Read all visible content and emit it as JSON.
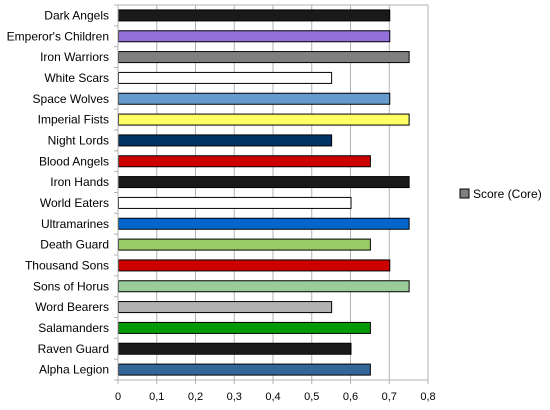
{
  "chart_data": {
    "type": "bar",
    "orientation": "horizontal",
    "categories": [
      "Dark Angels",
      "Emperor's Children",
      "Iron Warriors",
      "White Scars",
      "Space Wolves",
      "Imperial Fists",
      "Night Lords",
      "Blood Angels",
      "Iron Hands",
      "World Eaters",
      "Ultramarines",
      "Death Guard",
      "Thousand Sons",
      "Sons of Horus",
      "Word Bearers",
      "Salamanders",
      "Raven Guard",
      "Alpha Legion"
    ],
    "series": [
      {
        "name": "Score (Core)",
        "values": [
          0.7,
          0.7,
          0.75,
          0.55,
          0.7,
          0.75,
          0.55,
          0.65,
          0.75,
          0.6,
          0.75,
          0.65,
          0.7,
          0.75,
          0.55,
          0.65,
          0.6,
          0.65
        ],
        "colors": [
          "#1a1a1a",
          "#9370db",
          "#808080",
          "#ffffff",
          "#6699cc",
          "#ffff66",
          "#003366",
          "#cc0000",
          "#1a1a1a",
          "#ffffff",
          "#0066cc",
          "#99cc66",
          "#cc0000",
          "#99cc99",
          "#b3b3b3",
          "#009900",
          "#1a1a1a",
          "#336699"
        ]
      }
    ],
    "xlim": [
      0,
      0.8
    ],
    "x_ticks": [
      "0",
      "0,1",
      "0,2",
      "0,3",
      "0,4",
      "0,5",
      "0,6",
      "0,7",
      "0,8"
    ],
    "x_tick_values": [
      0,
      0.1,
      0.2,
      0.3,
      0.4,
      0.5,
      0.6,
      0.7,
      0.8
    ],
    "grid": true,
    "legend": {
      "placement": "right",
      "label": "Score (Core)",
      "swatch_color": "#808080"
    },
    "title": "",
    "xlabel": "",
    "ylabel": ""
  }
}
